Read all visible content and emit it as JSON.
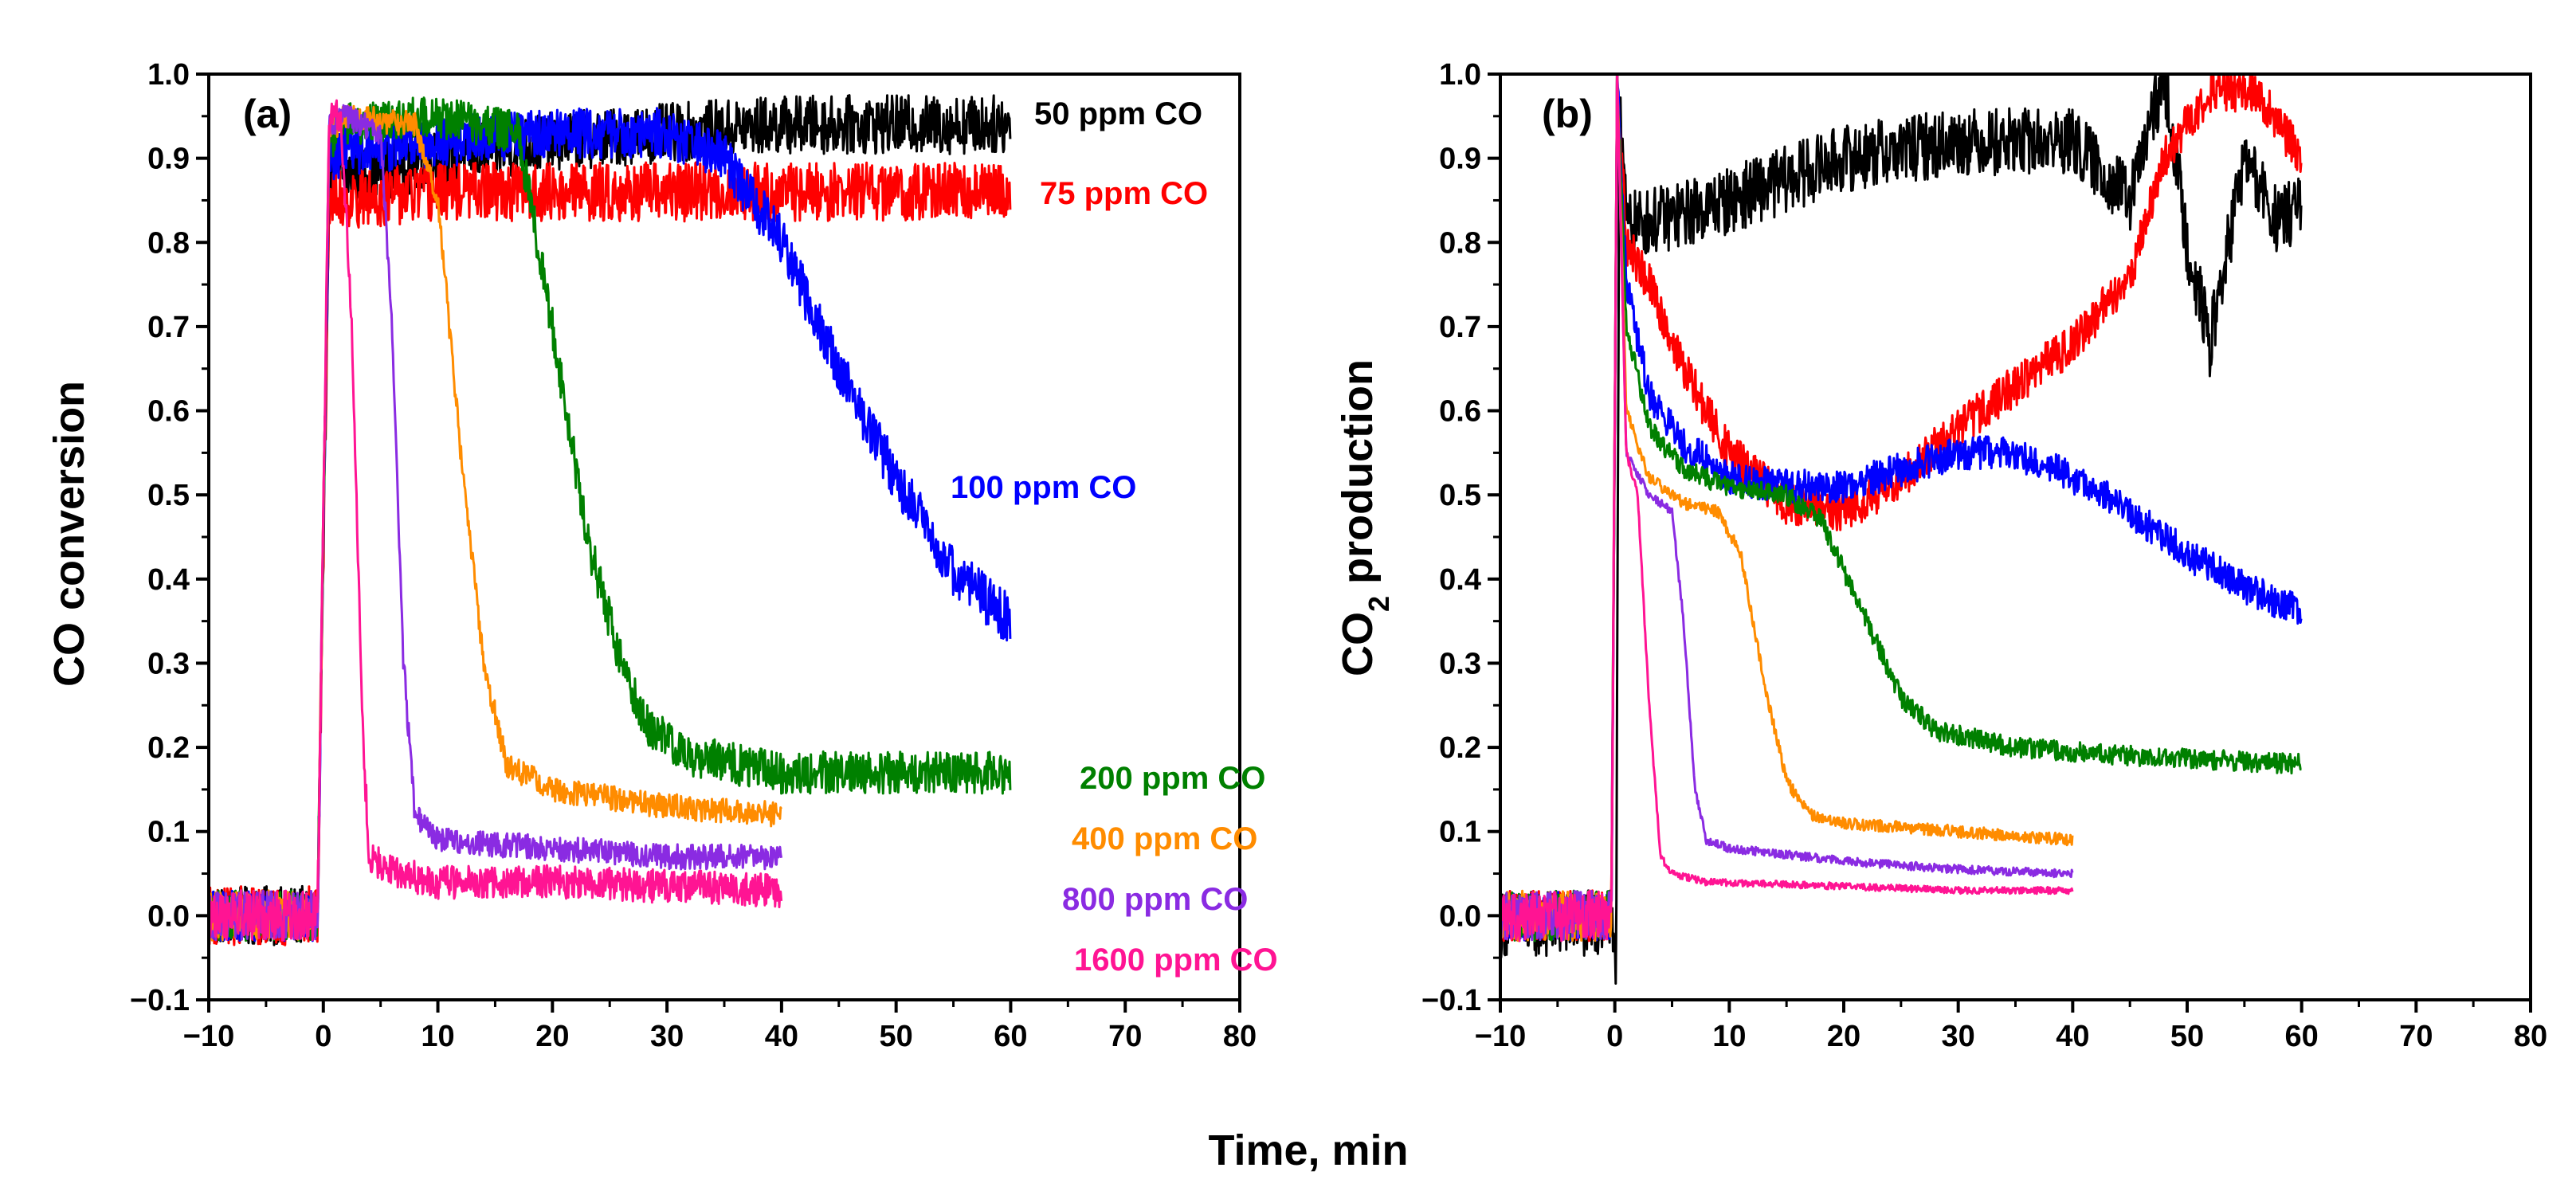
{
  "figure": {
    "xlabel": "Time, min",
    "legend_placement": "labels placed beside curves"
  },
  "chart_data": [
    {
      "type": "line",
      "panel": "(a)",
      "ylabel": "CO conversion",
      "xlim": [
        -10,
        80
      ],
      "ylim": [
        -0.1,
        1.0
      ],
      "xticks": [
        -10,
        0,
        10,
        20,
        30,
        40,
        50,
        60,
        70,
        80
      ],
      "xtick_labels": [
        "−10",
        "0",
        "10",
        "20",
        "30",
        "40",
        "50",
        "60",
        "70",
        "80"
      ],
      "yticks": [
        -0.1,
        0.0,
        0.1,
        0.2,
        0.3,
        0.4,
        0.5,
        0.6,
        0.7,
        0.8,
        0.9,
        1.0
      ],
      "ytick_labels": [
        "−0.1",
        "0.0",
        "0.1",
        "0.2",
        "0.3",
        "0.4",
        "0.5",
        "0.6",
        "0.7",
        "0.8",
        "0.9",
        "1.0"
      ],
      "series": [
        {
          "name": "50 ppm CO",
          "color": "#000000",
          "noise": 0.035,
          "x": [
            -10,
            -0.5,
            0.5,
            1.5,
            3,
            10,
            20,
            30,
            40,
            50,
            60
          ],
          "y": [
            0.0,
            0.0,
            0.88,
            0.88,
            0.88,
            0.9,
            0.92,
            0.93,
            0.94,
            0.94,
            0.94
          ]
        },
        {
          "name": "75 ppm CO",
          "color": "#ff0000",
          "noise": 0.035,
          "x": [
            -10,
            -0.5,
            0.5,
            1.5,
            10,
            20,
            30,
            40,
            50,
            60
          ],
          "y": [
            0.0,
            0.0,
            0.85,
            0.85,
            0.86,
            0.86,
            0.86,
            0.86,
            0.86,
            0.86
          ]
        },
        {
          "name": "100 ppm CO",
          "color": "#0000ff",
          "noise": 0.03,
          "x": [
            -10,
            -0.5,
            0.5,
            2,
            10,
            20,
            30,
            35,
            40,
            45,
            50,
            55,
            60
          ],
          "y": [
            0.0,
            0.0,
            0.9,
            0.91,
            0.92,
            0.93,
            0.93,
            0.9,
            0.8,
            0.65,
            0.52,
            0.41,
            0.35
          ]
        },
        {
          "name": "200 ppm CO",
          "color": "#008000",
          "noise": 0.025,
          "x": [
            -10,
            -0.5,
            0.5,
            2,
            10,
            17,
            20,
            23,
            26,
            28,
            32,
            40,
            50,
            60
          ],
          "y": [
            0.0,
            0.0,
            0.92,
            0.94,
            0.95,
            0.93,
            0.7,
            0.45,
            0.3,
            0.23,
            0.19,
            0.17,
            0.17,
            0.17
          ]
        },
        {
          "name": "400 ppm CO",
          "color": "#ff8c00",
          "noise": 0.015,
          "x": [
            -10,
            -0.5,
            0.5,
            2,
            8,
            10,
            12,
            14,
            16,
            20,
            30,
            40
          ],
          "y": [
            0.0,
            0.0,
            0.93,
            0.95,
            0.94,
            0.85,
            0.55,
            0.3,
            0.18,
            0.15,
            0.13,
            0.12
          ]
        },
        {
          "name": "800 ppm CO",
          "color": "#8a2be2",
          "noise": 0.015,
          "x": [
            -10,
            -0.5,
            0.5,
            2,
            5,
            6,
            7,
            8,
            10,
            20,
            30,
            40
          ],
          "y": [
            0.0,
            0.0,
            0.94,
            0.95,
            0.93,
            0.7,
            0.3,
            0.12,
            0.09,
            0.08,
            0.07,
            0.07
          ]
        },
        {
          "name": "1600 ppm CO",
          "color": "#ff1493",
          "noise": 0.02,
          "x": [
            -10,
            -0.5,
            0.5,
            1.5,
            2.5,
            3.5,
            4,
            6,
            10,
            20,
            30,
            40
          ],
          "y": [
            0.0,
            0.0,
            0.95,
            0.95,
            0.7,
            0.2,
            0.07,
            0.05,
            0.04,
            0.04,
            0.035,
            0.03
          ]
        }
      ]
    },
    {
      "type": "line",
      "panel": "(b)",
      "ylabel": "CO2 production",
      "ylabel_main": "CO",
      "ylabel_sub": "2",
      "ylabel_rest": " production",
      "xlim": [
        -10,
        80
      ],
      "ylim": [
        -0.1,
        1.0
      ],
      "xticks": [
        -10,
        0,
        10,
        20,
        30,
        40,
        50,
        60,
        70,
        80
      ],
      "xtick_labels": [
        "−10",
        "0",
        "10",
        "20",
        "30",
        "40",
        "50",
        "60",
        "70",
        "80"
      ],
      "yticks": [
        -0.1,
        0.0,
        0.1,
        0.2,
        0.3,
        0.4,
        0.5,
        0.6,
        0.7,
        0.8,
        0.9,
        1.0
      ],
      "ytick_labels": [
        "−0.1",
        "0.0",
        "0.1",
        "0.2",
        "0.3",
        "0.4",
        "0.5",
        "0.6",
        "0.7",
        "0.8",
        "0.9",
        "1.0"
      ],
      "series": [
        {
          "name": "50 ppm CO",
          "color": "#000000",
          "noise": 0.04,
          "x": [
            -10,
            -0.3,
            0.1,
            0.4,
            1,
            5,
            10,
            20,
            30,
            40,
            45,
            48,
            50,
            52,
            55,
            58,
            60
          ],
          "y": [
            -0.01,
            -0.01,
            -0.1,
            1.0,
            0.82,
            0.83,
            0.85,
            0.9,
            0.92,
            0.92,
            0.85,
            1.0,
            0.8,
            0.68,
            0.9,
            0.82,
            0.85
          ]
        },
        {
          "name": "75 ppm CO",
          "color": "#ff0000",
          "noise": 0.025,
          "x": [
            -10,
            -0.3,
            0.2,
            1,
            3,
            6,
            10,
            15,
            20,
            25,
            30,
            35,
            40,
            45,
            48,
            52,
            56,
            60
          ],
          "y": [
            0.0,
            0.0,
            1.0,
            0.8,
            0.75,
            0.65,
            0.55,
            0.49,
            0.48,
            0.52,
            0.58,
            0.63,
            0.68,
            0.76,
            0.9,
            0.98,
            0.98,
            0.9
          ]
        },
        {
          "name": "100 ppm CO",
          "color": "#0000ff",
          "noise": 0.02,
          "x": [
            -10,
            -0.3,
            0.2,
            1,
            3,
            6,
            10,
            15,
            20,
            25,
            30,
            35,
            40,
            45,
            50,
            55,
            60
          ],
          "y": [
            0.0,
            0.0,
            1.0,
            0.75,
            0.62,
            0.56,
            0.52,
            0.51,
            0.51,
            0.53,
            0.55,
            0.55,
            0.52,
            0.48,
            0.43,
            0.39,
            0.36
          ]
        },
        {
          "name": "200 ppm CO",
          "color": "#008000",
          "noise": 0.012,
          "x": [
            -10,
            -0.3,
            0.2,
            1,
            3,
            6,
            10,
            15,
            18,
            22,
            25,
            28,
            35,
            45,
            60
          ],
          "y": [
            0.0,
            0.0,
            1.0,
            0.7,
            0.58,
            0.53,
            0.51,
            0.5,
            0.47,
            0.35,
            0.26,
            0.22,
            0.2,
            0.19,
            0.18
          ]
        },
        {
          "name": "400 ppm CO",
          "color": "#ff8c00",
          "noise": 0.007,
          "x": [
            -10,
            -0.3,
            0.2,
            1,
            3,
            6,
            9,
            11,
            13,
            15,
            17,
            20,
            30,
            40
          ],
          "y": [
            0.0,
            0.0,
            1.0,
            0.6,
            0.52,
            0.49,
            0.48,
            0.43,
            0.28,
            0.16,
            0.12,
            0.11,
            0.1,
            0.09
          ]
        },
        {
          "name": "800 ppm CO",
          "color": "#8a2be2",
          "noise": 0.005,
          "x": [
            -10,
            -0.3,
            0.2,
            1,
            3,
            5,
            6,
            7,
            8,
            10,
            20,
            30,
            40
          ],
          "y": [
            0.0,
            0.0,
            1.0,
            0.55,
            0.5,
            0.48,
            0.35,
            0.15,
            0.09,
            0.08,
            0.065,
            0.055,
            0.05
          ]
        },
        {
          "name": "1600 ppm CO",
          "color": "#ff1493",
          "noise": 0.004,
          "x": [
            -10,
            -0.3,
            0.2,
            1,
            2,
            3,
            4,
            5,
            8,
            20,
            30,
            40
          ],
          "y": [
            0.0,
            0.0,
            1.0,
            0.55,
            0.5,
            0.25,
            0.07,
            0.05,
            0.04,
            0.035,
            0.03,
            0.03
          ]
        }
      ]
    }
  ]
}
